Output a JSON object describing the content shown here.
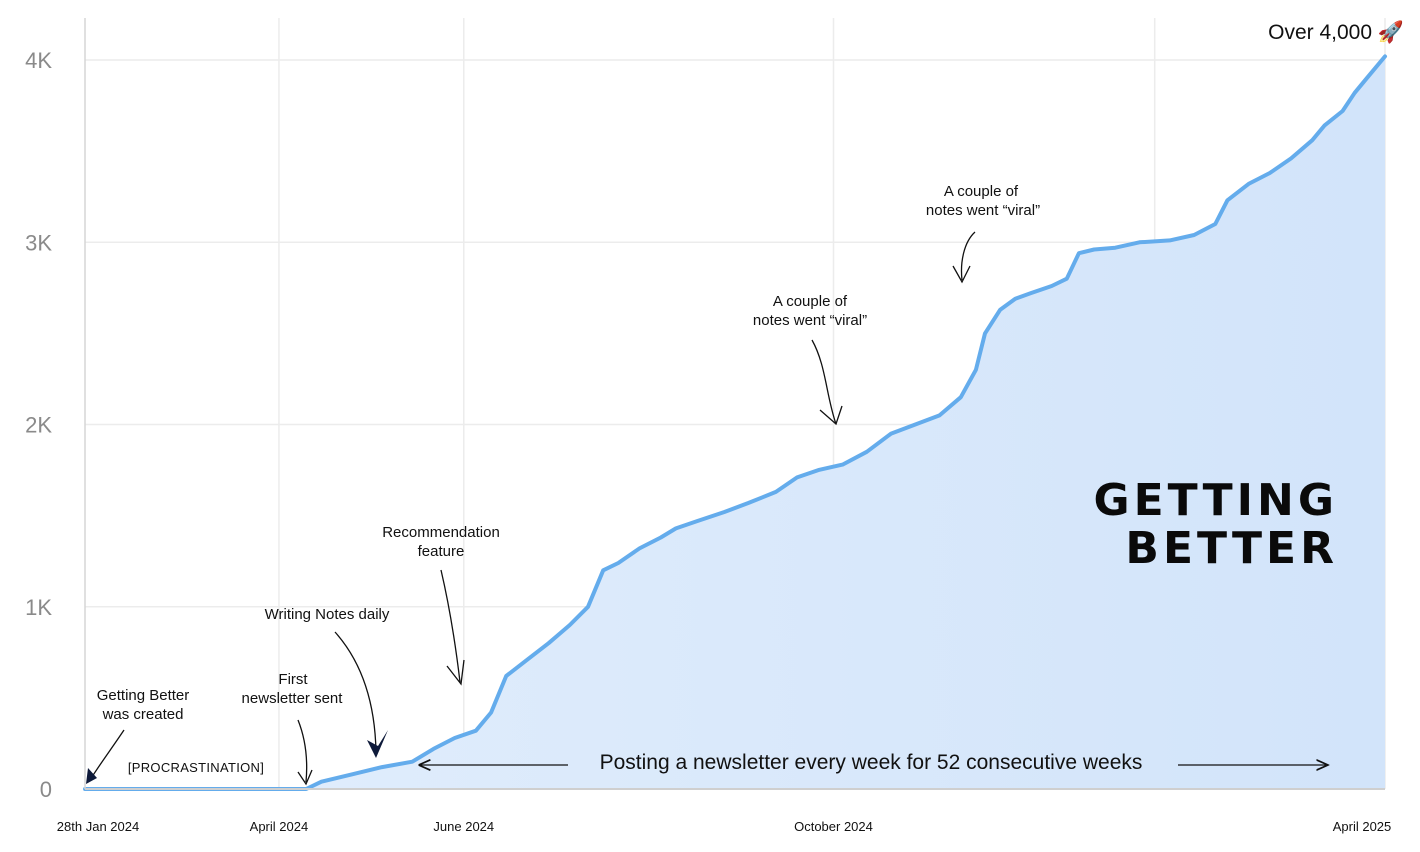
{
  "chart_data": {
    "type": "area",
    "title": "",
    "xlabel": "",
    "ylabel": "",
    "ylim": [
      0,
      4200
    ],
    "yticks": [
      {
        "value": 0,
        "label": "0"
      },
      {
        "value": 1000,
        "label": "1K"
      },
      {
        "value": 2000,
        "label": "2K"
      },
      {
        "value": 3000,
        "label": "3K"
      },
      {
        "value": 4000,
        "label": "4K"
      }
    ],
    "xlim": [
      "2024-01-28",
      "2025-04-01"
    ],
    "xticks": [
      {
        "date": "2024-01-28",
        "label": "28th Jan 2024"
      },
      {
        "date": "2024-04-01",
        "label": "April 2024"
      },
      {
        "date": "2024-06-01",
        "label": "June 2024"
      },
      {
        "date": "2024-10-01",
        "label": "October 2024"
      },
      {
        "date": "2025-04-01",
        "label": "April 2025"
      }
    ],
    "grid": true,
    "series": [
      {
        "color": "#64acec",
        "fill": "#d8e8fb",
        "points": [
          [
            "2024-01-28",
            0
          ],
          [
            "2024-03-01",
            0
          ],
          [
            "2024-04-10",
            0
          ],
          [
            "2024-04-15",
            40
          ],
          [
            "2024-04-25",
            80
          ],
          [
            "2024-05-05",
            120
          ],
          [
            "2024-05-15",
            150
          ],
          [
            "2024-05-22",
            220
          ],
          [
            "2024-05-29",
            280
          ],
          [
            "2024-06-05",
            320
          ],
          [
            "2024-06-10",
            420
          ],
          [
            "2024-06-15",
            620
          ],
          [
            "2024-06-22",
            710
          ],
          [
            "2024-06-29",
            800
          ],
          [
            "2024-07-06",
            900
          ],
          [
            "2024-07-12",
            1000
          ],
          [
            "2024-07-17",
            1200
          ],
          [
            "2024-07-22",
            1240
          ],
          [
            "2024-07-29",
            1320
          ],
          [
            "2024-08-05",
            1380
          ],
          [
            "2024-08-10",
            1430
          ],
          [
            "2024-08-17",
            1470
          ],
          [
            "2024-08-26",
            1520
          ],
          [
            "2024-09-03",
            1570
          ],
          [
            "2024-09-12",
            1630
          ],
          [
            "2024-09-19",
            1710
          ],
          [
            "2024-09-26",
            1750
          ],
          [
            "2024-10-04",
            1780
          ],
          [
            "2024-10-12",
            1850
          ],
          [
            "2024-10-20",
            1950
          ],
          [
            "2024-10-28",
            2000
          ],
          [
            "2024-11-05",
            2050
          ],
          [
            "2024-11-12",
            2150
          ],
          [
            "2024-11-17",
            2300
          ],
          [
            "2024-11-20",
            2500
          ],
          [
            "2024-11-25",
            2630
          ],
          [
            "2024-11-30",
            2690
          ],
          [
            "2024-12-05",
            2720
          ],
          [
            "2024-12-12",
            2760
          ],
          [
            "2024-12-17",
            2800
          ],
          [
            "2024-12-21",
            2940
          ],
          [
            "2024-12-26",
            2960
          ],
          [
            "2025-01-02",
            2970
          ],
          [
            "2025-01-10",
            3000
          ],
          [
            "2025-01-20",
            3010
          ],
          [
            "2025-01-28",
            3040
          ],
          [
            "2025-02-04",
            3100
          ],
          [
            "2025-02-08",
            3230
          ],
          [
            "2025-02-15",
            3320
          ],
          [
            "2025-02-22",
            3380
          ],
          [
            "2025-03-01",
            3460
          ],
          [
            "2025-03-08",
            3560
          ],
          [
            "2025-03-12",
            3640
          ],
          [
            "2025-03-18",
            3720
          ],
          [
            "2025-03-22",
            3820
          ],
          [
            "2025-03-26",
            3900
          ],
          [
            "2025-04-01",
            4020
          ]
        ]
      }
    ],
    "annotations": {
      "created": [
        "Getting Better",
        "was created"
      ],
      "procrastination": "[PROCRASTINATION]",
      "first_newsletter": [
        "First",
        "newsletter sent"
      ],
      "notes_daily": [
        "Writing Notes daily"
      ],
      "recommendation": [
        "Recommendation",
        "feature"
      ],
      "viral_1": [
        "A couple of",
        "notes went “viral”"
      ],
      "viral_2": [
        "A couple of",
        "notes went “viral”"
      ],
      "posting": "Posting a newsletter every week for 52 consecutive weeks",
      "over": "Over 4,000 🚀"
    },
    "brand": [
      "GETTING",
      "BETTER"
    ]
  }
}
